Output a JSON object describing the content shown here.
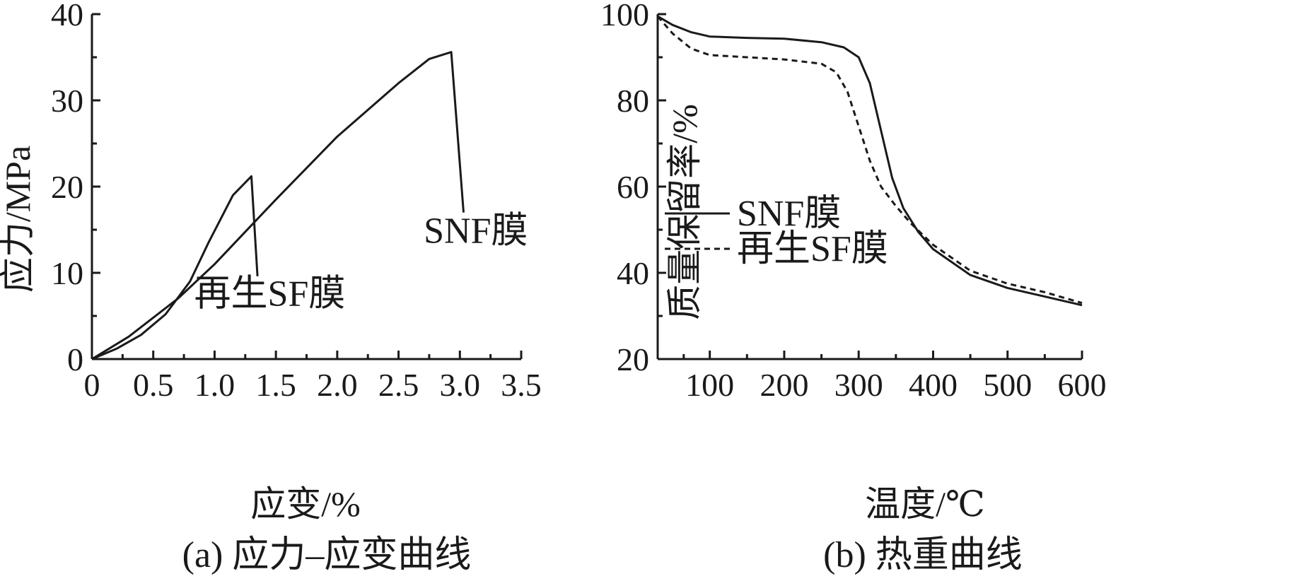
{
  "chart_data": [
    {
      "type": "line",
      "caption": "(a) 应力–应变曲线",
      "xlabel": "应变/%",
      "ylabel": "应力/MPa",
      "xlim": [
        0,
        3.5
      ],
      "ylim": [
        0,
        40
      ],
      "xticks": [
        0,
        0.5,
        1.0,
        1.5,
        2.0,
        2.5,
        3.0,
        3.5
      ],
      "xtick_labels": [
        "0",
        "0.5",
        "1.0",
        "1.5",
        "2.0",
        "2.5",
        "3.0",
        "3.5"
      ],
      "yticks": [
        0,
        10,
        20,
        30,
        40
      ],
      "ytick_labels": [
        "0",
        "10",
        "20",
        "30",
        "40"
      ],
      "grid": false,
      "series": [
        {
          "name": "SNF膜",
          "style": "solid",
          "x": [
            0,
            0.3,
            0.7,
            1.0,
            1.5,
            2.0,
            2.5,
            2.75,
            2.93,
            3.03
          ],
          "y": [
            0,
            2.6,
            7.0,
            11.0,
            18.5,
            25.8,
            32.0,
            34.8,
            35.6,
            17.0
          ]
        },
        {
          "name": "再生SF膜",
          "style": "solid",
          "x": [
            0,
            0.2,
            0.4,
            0.6,
            0.8,
            0.95,
            1.15,
            1.3,
            1.35
          ],
          "y": [
            0,
            1.2,
            2.8,
            5.2,
            9.0,
            13.5,
            19.0,
            21.2,
            9.6
          ]
        }
      ],
      "annotations": [
        {
          "text": "SNF膜",
          "x": 3.13,
          "y": 13.5
        },
        {
          "text": "再生SF膜",
          "x": 1.45,
          "y": 6.2
        }
      ]
    },
    {
      "type": "line",
      "caption": "(b) 热重曲线",
      "xlabel": "温度/℃",
      "ylabel": "质量保留率/%",
      "xlim": [
        30,
        600
      ],
      "ylim": [
        20,
        100
      ],
      "xticks": [
        100,
        200,
        300,
        400,
        500,
        600
      ],
      "xtick_labels": [
        "100",
        "200",
        "300",
        "400",
        "500",
        "600"
      ],
      "yticks": [
        20,
        40,
        60,
        80,
        100
      ],
      "ytick_labels": [
        "20",
        "40",
        "60",
        "80",
        "100"
      ],
      "grid": false,
      "legend": {
        "placement": "middle-left"
      },
      "series": [
        {
          "name": "SNF膜",
          "style": "solid",
          "x": [
            30,
            50,
            75,
            100,
            150,
            200,
            250,
            280,
            300,
            315,
            330,
            345,
            360,
            380,
            400,
            450,
            500,
            550,
            600
          ],
          "y": [
            99.5,
            97.5,
            95.8,
            94.8,
            94.5,
            94.3,
            93.5,
            92.3,
            90.0,
            84.0,
            73.0,
            62.0,
            55.0,
            49.5,
            45.5,
            39.5,
            36.5,
            34.5,
            32.5
          ]
        },
        {
          "name": "再生SF膜",
          "style": "dashed",
          "x": [
            30,
            50,
            75,
            100,
            150,
            200,
            250,
            270,
            285,
            300,
            315,
            330,
            350,
            370,
            400,
            450,
            500,
            550,
            600
          ],
          "y": [
            99.5,
            95.5,
            92.0,
            90.5,
            90.0,
            89.5,
            88.5,
            86.5,
            82.0,
            74.0,
            66.0,
            60.0,
            55.5,
            51.5,
            46.5,
            40.5,
            37.5,
            35.5,
            33.0
          ]
        }
      ]
    }
  ]
}
